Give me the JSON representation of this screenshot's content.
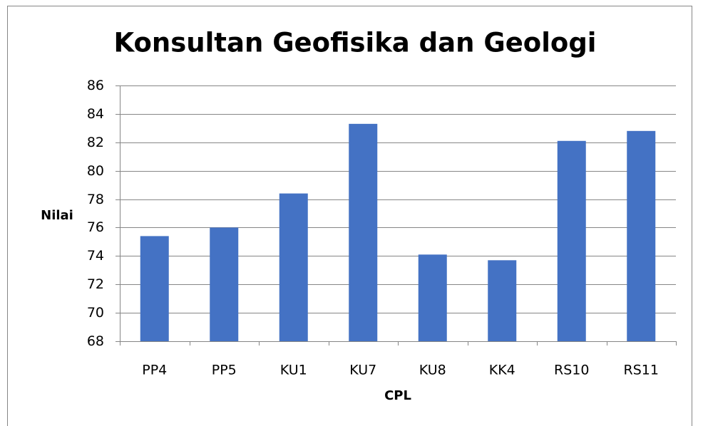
{
  "chart_data": {
    "type": "bar",
    "title": "Konsultan Geofisika dan Geologi",
    "x_label": "CPL",
    "y_label": "Nilai",
    "categories": [
      "PP4",
      "PP5",
      "KU1",
      "KU7",
      "KU8",
      "KK4",
      "RS10",
      "RS11"
    ],
    "values": [
      75.4,
      76.0,
      78.4,
      83.3,
      74.1,
      73.7,
      82.1,
      82.8
    ],
    "color": "#4472c4",
    "ylim": [
      68,
      86
    ],
    "yticks": [
      68,
      70,
      72,
      74,
      76,
      78,
      80,
      82,
      84,
      86
    ],
    "grid": true
  }
}
